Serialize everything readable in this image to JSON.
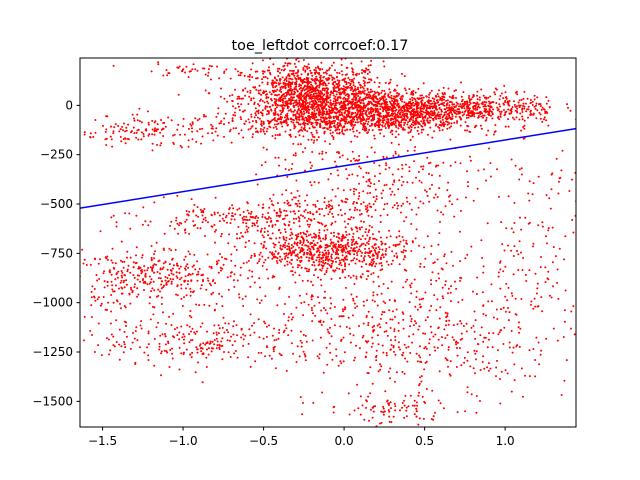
{
  "chart_data": {
    "type": "scatter",
    "title": "toe_leftdot corrcoef:0.17",
    "xlabel": "",
    "ylabel": "",
    "xlim": [
      -1.64,
      1.44
    ],
    "ylim": [
      -1630,
      240
    ],
    "grid": false,
    "x_ticks": [
      {
        "value": -1.5,
        "label": "−1.5"
      },
      {
        "value": -1.0,
        "label": "−1.0"
      },
      {
        "value": -0.5,
        "label": "−0.5"
      },
      {
        "value": 0.0,
        "label": "0.0"
      },
      {
        "value": 0.5,
        "label": "0.5"
      },
      {
        "value": 1.0,
        "label": "1.0"
      }
    ],
    "y_ticks": [
      {
        "value": 0,
        "label": "0"
      },
      {
        "value": -250,
        "label": "−250"
      },
      {
        "value": -500,
        "label": "−500"
      },
      {
        "value": -750,
        "label": "−750"
      },
      {
        "value": -1000,
        "label": "−1000"
      },
      {
        "value": -1250,
        "label": "−1250"
      },
      {
        "value": -1500,
        "label": "−1500"
      }
    ],
    "scatter_color": "#ff0000",
    "fit_line": {
      "color": "#0000ff",
      "x": [
        -1.64,
        1.44
      ],
      "y": [
        -521,
        -118
      ]
    },
    "clusters": [
      {
        "cx": -0.2,
        "cy": 40,
        "sx": 0.22,
        "sy": 90,
        "n": 1400
      },
      {
        "cx": 0.25,
        "cy": -20,
        "sx": 0.3,
        "sy": 50,
        "n": 900
      },
      {
        "cx": 0.75,
        "cy": -10,
        "sx": 0.3,
        "sy": 40,
        "n": 500
      },
      {
        "cx": 0.1,
        "cy": -90,
        "sx": 0.45,
        "sy": 30,
        "n": 350
      },
      {
        "cx": -0.1,
        "cy": -740,
        "sx": 0.25,
        "sy": 55,
        "n": 650
      },
      {
        "cx": 0.05,
        "cy": -500,
        "sx": 0.3,
        "sy": 40,
        "n": 120
      },
      {
        "cx": -0.6,
        "cy": -580,
        "sx": 0.35,
        "sy": 40,
        "n": 250
      },
      {
        "cx": -1.1,
        "cy": -860,
        "sx": 0.25,
        "sy": 60,
        "n": 250
      },
      {
        "cx": -0.9,
        "cy": -1200,
        "sx": 0.3,
        "sy": 60,
        "n": 200
      },
      {
        "cx": -1.2,
        "cy": -130,
        "sx": 0.25,
        "sy": 40,
        "n": 150
      },
      {
        "cx": 0.6,
        "cy": -1250,
        "sx": 0.4,
        "sy": 150,
        "n": 250
      },
      {
        "cx": 0.4,
        "cy": -980,
        "sx": 0.45,
        "sy": 200,
        "n": 250
      },
      {
        "cx": -0.3,
        "cy": -1050,
        "sx": 0.45,
        "sy": 150,
        "n": 200
      },
      {
        "cx": 0.2,
        "cy": -350,
        "sx": 0.35,
        "sy": 100,
        "n": 200
      },
      {
        "cx": -1.4,
        "cy": -900,
        "sx": 0.15,
        "sy": 150,
        "n": 120
      },
      {
        "cx": 1.2,
        "cy": -700,
        "sx": 0.2,
        "sy": 300,
        "n": 150
      },
      {
        "cx": 0.3,
        "cy": -1550,
        "sx": 0.2,
        "sy": 40,
        "n": 80
      },
      {
        "cx": -0.95,
        "cy": 180,
        "sx": 0.2,
        "sy": 15,
        "n": 40
      }
    ]
  }
}
